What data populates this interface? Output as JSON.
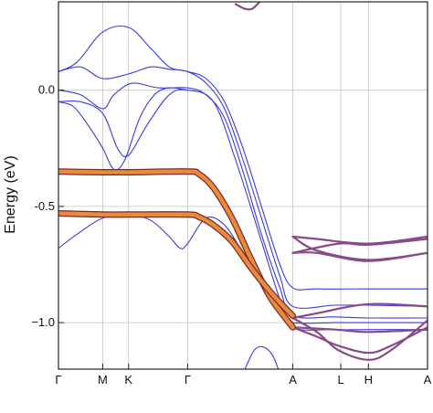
{
  "chart_data": {
    "type": "line",
    "title": "",
    "xlabel": "",
    "ylabel": "Energy (eV)",
    "ylim": [
      -1.2,
      0.38
    ],
    "grid": true,
    "legend": "none",
    "x_ticks": [
      {
        "label": "Γ",
        "pos": 0
      },
      {
        "label": "M",
        "pos": 0.12
      },
      {
        "label": "K",
        "pos": 0.19
      },
      {
        "label": "Γ",
        "pos": 0.35
      },
      {
        "label": "A",
        "pos": 0.635
      },
      {
        "label": "L",
        "pos": 0.765
      },
      {
        "label": "H",
        "pos": 0.84
      },
      {
        "label": "A",
        "pos": 1.0
      }
    ],
    "y_ticks": [
      {
        "label": "0.0",
        "value": 0.0
      },
      {
        "label": "-0.5",
        "value": -0.5
      },
      {
        "label": "−1.0",
        "value": -1.0
      }
    ],
    "colors": {
      "band": "#3a3ae0",
      "orbital": "#ea8a3a",
      "mixed": "#8a4a8a",
      "grid": "#c4c4c4"
    },
    "series": [
      {
        "color": "band",
        "points": [
          [
            0,
            0.08
          ],
          [
            0.05,
            0.12
          ],
          [
            0.12,
            0.25
          ],
          [
            0.19,
            0.27
          ],
          [
            0.25,
            0.18
          ],
          [
            0.3,
            0.1
          ],
          [
            0.35,
            0.08
          ],
          [
            0.4,
            0.05
          ],
          [
            0.45,
            -0.05
          ],
          [
            0.5,
            -0.25
          ],
          [
            0.55,
            -0.5
          ],
          [
            0.6,
            -0.75
          ],
          [
            0.635,
            -0.85
          ],
          [
            0.7,
            -0.855
          ],
          [
            0.84,
            -0.855
          ],
          [
            1.0,
            -0.855
          ]
        ]
      },
      {
        "color": "band",
        "points": [
          [
            0,
            0.08
          ],
          [
            0.06,
            0.1
          ],
          [
            0.12,
            0.05
          ],
          [
            0.19,
            0.07
          ],
          [
            0.25,
            0.1
          ],
          [
            0.3,
            0.09
          ],
          [
            0.35,
            0.08
          ],
          [
            0.4,
            0.03
          ],
          [
            0.45,
            -0.08
          ],
          [
            0.5,
            -0.3
          ],
          [
            0.55,
            -0.55
          ],
          [
            0.6,
            -0.8
          ],
          [
            0.635,
            -0.93
          ],
          [
            0.75,
            -0.925
          ],
          [
            0.84,
            -0.925
          ],
          [
            1.0,
            -0.93
          ]
        ]
      },
      {
        "color": "band",
        "points": [
          [
            0,
            0.0
          ],
          [
            0.06,
            -0.02
          ],
          [
            0.12,
            -0.08
          ],
          [
            0.15,
            -0.02
          ],
          [
            0.2,
            0.03
          ],
          [
            0.27,
            0.01
          ],
          [
            0.35,
            0.01
          ],
          [
            0.4,
            -0.02
          ],
          [
            0.45,
            -0.12
          ],
          [
            0.5,
            -0.35
          ],
          [
            0.55,
            -0.62
          ],
          [
            0.6,
            -0.85
          ],
          [
            0.635,
            -0.97
          ],
          [
            0.75,
            -0.975
          ],
          [
            0.84,
            -0.98
          ],
          [
            1.0,
            -0.98
          ]
        ]
      },
      {
        "color": "band",
        "points": [
          [
            0,
            -0.05
          ],
          [
            0.06,
            -0.05
          ],
          [
            0.12,
            -0.1
          ],
          [
            0.16,
            -0.25
          ],
          [
            0.19,
            -0.28
          ],
          [
            0.24,
            -0.15
          ],
          [
            0.3,
            -0.02
          ],
          [
            0.35,
            0.0
          ],
          [
            0.42,
            -0.05
          ],
          [
            0.48,
            -0.3
          ],
          [
            0.55,
            -0.65
          ],
          [
            0.6,
            -0.9
          ],
          [
            0.635,
            -1.02
          ],
          [
            0.75,
            -1.03
          ],
          [
            0.84,
            -1.03
          ],
          [
            1.0,
            -1.03
          ]
        ]
      },
      {
        "color": "band",
        "points": [
          [
            0,
            -0.05
          ],
          [
            0.04,
            -0.07
          ],
          [
            0.08,
            -0.15
          ],
          [
            0.12,
            -0.25
          ],
          [
            0.15,
            -0.34
          ],
          [
            0.18,
            -0.3
          ],
          [
            0.22,
            -0.12
          ],
          [
            0.26,
            -0.02
          ],
          [
            0.3,
            0.01
          ],
          [
            0.35,
            0.0
          ]
        ]
      },
      {
        "color": "band",
        "points": [
          [
            0,
            -0.68
          ],
          [
            0.05,
            -0.62
          ],
          [
            0.12,
            -0.55
          ],
          [
            0.19,
            -0.535
          ],
          [
            0.25,
            -0.56
          ],
          [
            0.3,
            -0.63
          ],
          [
            0.33,
            -0.68
          ],
          [
            0.35,
            -0.66
          ],
          [
            0.4,
            -0.55
          ],
          [
            0.45,
            -0.58
          ],
          [
            0.5,
            -0.7
          ],
          [
            0.56,
            -0.85
          ],
          [
            0.6,
            -0.96
          ],
          [
            0.635,
            -1.0
          ],
          [
            0.75,
            -1.0
          ],
          [
            0.84,
            -1.0
          ],
          [
            1.0,
            -1.0
          ]
        ]
      },
      {
        "color": "band",
        "points": [
          [
            0,
            -0.36
          ],
          [
            0.1,
            -0.36
          ],
          [
            0.12,
            -0.35
          ],
          [
            0.14,
            -0.355
          ],
          [
            0.19,
            -0.36
          ]
        ]
      },
      {
        "color": "band",
        "points": [
          [
            0.5,
            -1.22
          ],
          [
            0.53,
            -1.12
          ],
          [
            0.555,
            -1.105
          ],
          [
            0.58,
            -1.14
          ],
          [
            0.6,
            -1.22
          ]
        ]
      },
      {
        "color": "mixed",
        "points": [
          [
            0.635,
            -0.63
          ],
          [
            0.7,
            -0.64
          ],
          [
            0.84,
            -0.66
          ],
          [
            1.0,
            -0.63
          ]
        ]
      },
      {
        "color": "mixed",
        "points": [
          [
            0.635,
            -0.63
          ],
          [
            0.7,
            -0.69
          ],
          [
            0.84,
            -0.73
          ],
          [
            1.0,
            -0.7
          ]
        ]
      },
      {
        "color": "mixed",
        "points": [
          [
            0.635,
            -0.7
          ],
          [
            0.7,
            -0.7
          ],
          [
            0.84,
            -0.735
          ],
          [
            1.0,
            -0.7
          ]
        ]
      },
      {
        "color": "mixed",
        "points": [
          [
            0.635,
            -0.7
          ],
          [
            0.76,
            -0.66
          ],
          [
            0.84,
            -0.665
          ],
          [
            1.0,
            -0.64
          ]
        ]
      },
      {
        "color": "mixed",
        "points": [
          [
            0.635,
            -0.98
          ],
          [
            0.7,
            -0.96
          ],
          [
            0.84,
            -0.92
          ],
          [
            1.0,
            -0.93
          ]
        ]
      },
      {
        "color": "mixed",
        "points": [
          [
            0.635,
            -0.98
          ],
          [
            0.7,
            -1.04
          ],
          [
            0.76,
            -1.12
          ],
          [
            0.84,
            -1.16
          ],
          [
            0.9,
            -1.12
          ],
          [
            1.0,
            -0.99
          ]
        ]
      },
      {
        "color": "mixed",
        "points": [
          [
            0.635,
            -1.02
          ],
          [
            0.7,
            -1.06
          ],
          [
            0.76,
            -1.1
          ],
          [
            0.84,
            -1.13
          ],
          [
            0.9,
            -1.1
          ],
          [
            1.0,
            -1.02
          ]
        ]
      },
      {
        "color": "mixed",
        "points": [
          [
            0.635,
            -1.02
          ],
          [
            0.75,
            -1.03
          ],
          [
            0.84,
            -1.04
          ],
          [
            1.0,
            -1.03
          ]
        ]
      },
      {
        "color": "mixed",
        "points": [
          [
            0.48,
            0.37
          ],
          [
            0.505,
            0.35
          ],
          [
            0.525,
            0.35
          ],
          [
            0.545,
            0.38
          ]
        ]
      },
      {
        "color": "orbital",
        "heavy": true,
        "points": [
          [
            0,
            -0.35
          ],
          [
            0.12,
            -0.353
          ],
          [
            0.19,
            -0.353
          ],
          [
            0.35,
            -0.35
          ],
          [
            0.38,
            -0.36
          ],
          [
            0.42,
            -0.42
          ],
          [
            0.47,
            -0.55
          ],
          [
            0.52,
            -0.72
          ],
          [
            0.57,
            -0.88
          ],
          [
            0.61,
            -0.97
          ],
          [
            0.635,
            -1.02
          ]
        ]
      },
      {
        "color": "orbital",
        "heavy": true,
        "points": [
          [
            0,
            -0.53
          ],
          [
            0.12,
            -0.535
          ],
          [
            0.19,
            -0.535
          ],
          [
            0.35,
            -0.535
          ],
          [
            0.38,
            -0.545
          ],
          [
            0.42,
            -0.58
          ],
          [
            0.47,
            -0.65
          ],
          [
            0.52,
            -0.76
          ],
          [
            0.57,
            -0.86
          ],
          [
            0.61,
            -0.93
          ],
          [
            0.635,
            -0.97
          ]
        ]
      }
    ]
  }
}
